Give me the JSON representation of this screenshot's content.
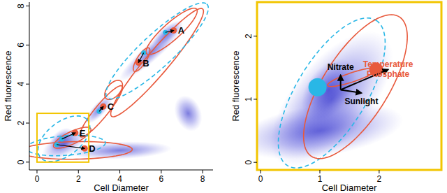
{
  "chart_data": [
    {
      "type": "scatter",
      "x_label": "Cell Diameter",
      "y_label": "Red fluorescence",
      "xlim": [
        -0.37,
        8.5
      ],
      "ylim": [
        -0.4,
        8.2
      ],
      "xticks": [
        0,
        2,
        4,
        6,
        8
      ],
      "yticks": [
        0,
        2,
        4,
        6,
        8
      ],
      "density": [
        {
          "x": 1.2,
          "y": 1.15,
          "a": [
            0.45,
            0.55
          ],
          "b": [
            0.4,
            -0.25
          ]
        },
        {
          "x": 1.3,
          "y": 0.9,
          "a": [
            1.0,
            0.6
          ],
          "b": [
            0.3,
            -0.5
          ]
        },
        {
          "x": 6.3,
          "y": 6.6,
          "a": [
            0.7,
            0.6
          ],
          "b": [
            0.25,
            -0.25
          ]
        },
        {
          "x": 5.5,
          "y": 5.6,
          "a": [
            1.5,
            1.4
          ],
          "b": [
            0.3,
            -0.3
          ]
        },
        {
          "x": 3.0,
          "y": 2.7,
          "a": [
            0.6,
            0.7
          ],
          "b": [
            0.25,
            -0.2
          ]
        },
        {
          "x": 4.0,
          "y": 0.6,
          "a": [
            2.5,
            0.1
          ],
          "b": [
            0,
            0.45
          ]
        },
        {
          "x": 7.3,
          "y": 2.5,
          "a": [
            0.6,
            0.2
          ],
          "b": [
            0.3,
            -0.9
          ]
        }
      ],
      "ellipses": [
        {
          "color": "#e8593c",
          "line_style": "solid",
          "x": 5.8,
          "y": 5.1,
          "a": [
            2.2,
            2.75
          ],
          "b": [
            0.42,
            -0.38
          ]
        },
        {
          "color": "#e8593c",
          "line_style": "solid",
          "x": 6.5,
          "y": 6.7,
          "a": [
            1.2,
            1.15
          ],
          "b": [
            0.3,
            -0.3
          ]
        },
        {
          "color": "#e8593c",
          "line_style": "solid",
          "x": 5.05,
          "y": 5.25,
          "a": [
            0.35,
            0.6
          ],
          "b": [
            0.2,
            -0.1
          ]
        },
        {
          "color": "#e8593c",
          "line_style": "solid",
          "x": 3.7,
          "y": 3.7,
          "a": [
            0.35,
            0.45
          ],
          "b": [
            0.25,
            -0.2
          ]
        },
        {
          "color": "#e8593c",
          "line_style": "solid",
          "x": 3.1,
          "y": 2.6,
          "a": [
            1.0,
            1.3
          ],
          "b": [
            0.25,
            -0.2
          ]
        },
        {
          "color": "#e8593c",
          "line_style": "solid",
          "x": 1.9,
          "y": 0.6,
          "a": [
            2.7,
            0.05
          ],
          "b": [
            0,
            0.45
          ]
        },
        {
          "color": "#e8593c",
          "line_style": "solid",
          "x": 1.7,
          "y": 1.25,
          "a": [
            0.9,
            0.45
          ],
          "b": [
            0.1,
            -0.3
          ]
        },
        {
          "color": "#29b7e6",
          "line_style": "dashed",
          "x": 5.8,
          "y": 5.7,
          "a": [
            2.4,
            2.4
          ],
          "b": [
            0.6,
            -0.55
          ]
        },
        {
          "color": "#29b7e6",
          "line_style": "dashed",
          "x": 1.4,
          "y": 0.85,
          "a": [
            1.9,
            0.15
          ],
          "b": [
            0.05,
            -0.5
          ]
        },
        {
          "color": "#29b7e6",
          "line_style": "dashed",
          "x": 1.3,
          "y": 1.2,
          "a": [
            1.1,
            1.0
          ],
          "b": [
            0.6,
            -0.6
          ]
        }
      ],
      "clusters": [
        {
          "label": "A",
          "x": 6.6,
          "y": 6.75,
          "baseline_x": 6.2,
          "baseline_y": 6.65,
          "color": "#e8593c",
          "baseline_color": "#29b7e6"
        },
        {
          "label": "B",
          "x": 4.9,
          "y": 5.1,
          "baseline_x": 5.15,
          "baseline_y": 5.6,
          "color": "#e8593c",
          "baseline_color": "#29b7e6"
        },
        {
          "label": "C",
          "x": 3.2,
          "y": 2.85,
          "baseline_x": 3.0,
          "baseline_y": 2.6,
          "color": "#e8593c",
          "baseline_color": "#29b7e6"
        },
        {
          "label": "D",
          "x": 2.3,
          "y": 0.7,
          "baseline_x": 0.95,
          "baseline_y": 0.9,
          "color": "#e8593c",
          "baseline_color": "#29b7e6"
        },
        {
          "label": "E",
          "x": 1.85,
          "y": 1.5,
          "baseline_x": 1.2,
          "baseline_y": 1.18,
          "color": "#e8593c",
          "baseline_color": "#29b7e6"
        }
      ],
      "zoom_box": {
        "xlim": [
          0,
          2.5
        ],
        "ylim": [
          0,
          2.5
        ],
        "color": "#f2c500"
      }
    },
    {
      "type": "scatter",
      "x_label": "Cell Diameter",
      "y_label": "Red fluorescence",
      "xlim": [
        -0.06,
        3.05
      ],
      "ylim": [
        -0.12,
        2.54
      ],
      "xticks": [
        0,
        1,
        2
      ],
      "yticks": [
        0,
        1,
        2
      ],
      "frame_color": "#f2c500",
      "density": [
        {
          "x": 1.15,
          "y": 1.15,
          "a": [
            0.35,
            0.45
          ],
          "b": [
            0.3,
            -0.2
          ]
        },
        {
          "x": 1.2,
          "y": 1.0,
          "a": [
            0.9,
            1.0
          ],
          "b": [
            0.5,
            -0.4
          ]
        },
        {
          "x": 1.0,
          "y": 0.5,
          "a": [
            1.4,
            0.2
          ],
          "b": [
            0.1,
            -0.4
          ]
        }
      ],
      "ellipses": [
        {
          "color": "#29b7e6",
          "line_style": "dashed",
          "x": 1.2,
          "y": 1.1,
          "a": [
            0.75,
            1.15
          ],
          "b": [
            0.5,
            -0.3
          ]
        },
        {
          "color": "#e8593c",
          "line_style": "solid",
          "x": 1.6,
          "y": 1.2,
          "a": [
            0.75,
            1.1
          ],
          "b": [
            0.45,
            -0.3
          ]
        },
        {
          "color": "#e8593c",
          "line_style": "solid",
          "x": 1.55,
          "y": 1.35,
          "a": [
            0.42,
            0.13
          ],
          "b": [
            0.02,
            -0.07
          ]
        }
      ],
      "points": [
        {
          "x": 0.96,
          "y": 1.19,
          "color": "#29b7e6"
        },
        {
          "x": 1.95,
          "y": 1.47,
          "color": "#e8593c"
        }
      ],
      "arrows": [
        {
          "labels": [
            "Nitrate"
          ],
          "label_color": "#000000",
          "x0": 1.35,
          "y0": 1.15,
          "x1": 1.35,
          "y1": 1.38
        },
        {
          "labels": [
            "Sunlight"
          ],
          "label_color": "#000000",
          "x0": 1.35,
          "y0": 1.15,
          "x1": 1.7,
          "y1": 1.1
        },
        {
          "labels": [
            "Temperature",
            "Phosphate"
          ],
          "label_color": "#e8593c",
          "x0": 1.35,
          "y0": 1.15,
          "x1": 2.15,
          "y1": 1.47
        }
      ]
    }
  ]
}
